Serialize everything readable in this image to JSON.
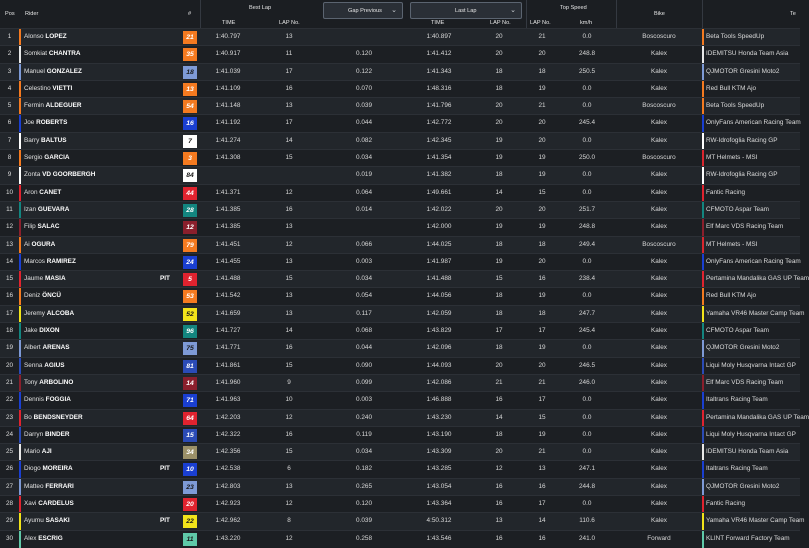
{
  "header": {
    "pos": "Pos",
    "rider": "Rider",
    "num": "#",
    "best_lap": "Best Lap",
    "best_time": "TIME",
    "best_lap_no": "LAP No.",
    "gap_dropdown": "Gap Previous",
    "last_lap_dropdown": "Last Lap",
    "last_time": "TIME",
    "last_lap_no": "LAP No.",
    "top_speed": "Top Speed",
    "top_speed_lap": "LAP No.",
    "top_speed_unit": "km/h",
    "bike": "Bike",
    "team": "Te"
  },
  "icons": {
    "dropdown_chevron": "chevron-down-icon"
  },
  "rows": [
    {
      "pos": "1",
      "first": "Alonso",
      "last": "LOPEZ",
      "pit": "",
      "num": "21",
      "numBg": "#f47a20",
      "numFg": "#ffffff",
      "bar": "#f47a20",
      "best": "1:40.797",
      "bestLap": "13",
      "gap": "",
      "last_time": "1:40.897",
      "last_lap": "20",
      "ts_lap": "21",
      "ts": "0.0",
      "bike": "Boscoscuro",
      "team": "Beta Tools SpeedUp",
      "teamColor": "#f47a20"
    },
    {
      "pos": "2",
      "first": "Somkiat",
      "last": "CHANTRA",
      "pit": "",
      "num": "35",
      "numBg": "#f47a20",
      "numFg": "#ffffff",
      "bar": "#e8e8e8",
      "best": "1:40.917",
      "bestLap": "11",
      "gap": "0.120",
      "last_time": "1:41.412",
      "last_lap": "20",
      "ts_lap": "20",
      "ts": "248.8",
      "bike": "Kalex",
      "team": "IDEMITSU Honda Team Asia",
      "teamColor": "#e8e8e8"
    },
    {
      "pos": "3",
      "first": "Manuel",
      "last": "GONZALEZ",
      "pit": "",
      "num": "18",
      "numBg": "#7e9ad6",
      "numFg": "#1a1a1a",
      "bar": "#7e9ad6",
      "best": "1:41.039",
      "bestLap": "17",
      "gap": "0.122",
      "last_time": "1:41.343",
      "last_lap": "18",
      "ts_lap": "18",
      "ts": "250.5",
      "bike": "Kalex",
      "team": "QJMOTOR Gresini Moto2",
      "teamColor": "#7e9ad6"
    },
    {
      "pos": "4",
      "first": "Celestino",
      "last": "VIETTI",
      "pit": "",
      "num": "13",
      "numBg": "#f47a20",
      "numFg": "#ffffff",
      "bar": "#f47a20",
      "best": "1:41.109",
      "bestLap": "16",
      "gap": "0.070",
      "last_time": "1:48.316",
      "last_lap": "18",
      "ts_lap": "19",
      "ts": "0.0",
      "bike": "Kalex",
      "team": "Red Bull KTM Ajo",
      "teamColor": "#f47a20"
    },
    {
      "pos": "5",
      "first": "Fermin",
      "last": "ALDEGUER",
      "pit": "",
      "num": "54",
      "numBg": "#f47a20",
      "numFg": "#ffffff",
      "bar": "#f47a20",
      "best": "1:41.148",
      "bestLap": "13",
      "gap": "0.039",
      "last_time": "1:41.796",
      "last_lap": "20",
      "ts_lap": "21",
      "ts": "0.0",
      "bike": "Boscoscuro",
      "team": "Beta Tools SpeedUp",
      "teamColor": "#f47a20"
    },
    {
      "pos": "6",
      "first": "Joe",
      "last": "ROBERTS",
      "pit": "",
      "num": "16",
      "numBg": "#1a3fd1",
      "numFg": "#ffffff",
      "bar": "#1a3fd1",
      "best": "1:41.192",
      "bestLap": "17",
      "gap": "0.044",
      "last_time": "1:42.772",
      "last_lap": "20",
      "ts_lap": "20",
      "ts": "245.4",
      "bike": "Kalex",
      "team": "OnlyFans American Racing Team",
      "teamColor": "#1a3fd1"
    },
    {
      "pos": "7",
      "first": "Barry",
      "last": "BALTUS",
      "pit": "",
      "num": "7",
      "numBg": "#ffffff",
      "numFg": "#1a1a1a",
      "bar": "#ffffff",
      "best": "1:41.274",
      "bestLap": "14",
      "gap": "0.082",
      "last_time": "1:42.345",
      "last_lap": "19",
      "ts_lap": "20",
      "ts": "0.0",
      "bike": "Kalex",
      "team": "RW-Idrofoglia Racing GP",
      "teamColor": "#ffffff"
    },
    {
      "pos": "8",
      "first": "Sergio",
      "last": "GARCIA",
      "pit": "",
      "num": "3",
      "numBg": "#f47a20",
      "numFg": "#ffffff",
      "bar": "#f47a20",
      "best": "1:41.308",
      "bestLap": "15",
      "gap": "0.034",
      "last_time": "1:41.354",
      "last_lap": "19",
      "ts_lap": "19",
      "ts": "250.0",
      "bike": "Boscoscuro",
      "team": "MT Helmets - MSI",
      "teamColor": "#d9262e"
    },
    {
      "pos": "9",
      "first": "Zonta",
      "last": "VD GOORBERGH",
      "pit": "",
      "num": "84",
      "numBg": "#ffffff",
      "numFg": "#1a1a1a",
      "bar": "#ffffff",
      "best": "",
      "bestLap": "",
      "gap": "0.019",
      "last_time": "1:41.382",
      "last_lap": "18",
      "ts_lap": "19",
      "ts": "0.0",
      "bike": "Kalex",
      "team": "RW-Idrofoglia Racing GP",
      "teamColor": "#ffffff"
    },
    {
      "pos": "10",
      "first": "Aron",
      "last": "CANET",
      "pit": "",
      "num": "44",
      "numBg": "#e0232f",
      "numFg": "#ffffff",
      "bar": "#e0232f",
      "best": "1:41.371",
      "bestLap": "12",
      "gap": "0.064",
      "last_time": "1:49.661",
      "last_lap": "14",
      "ts_lap": "15",
      "ts": "0.0",
      "bike": "Kalex",
      "team": "Fantic Racing",
      "teamColor": "#e0232f"
    },
    {
      "pos": "11",
      "first": "Izan",
      "last": "GUEVARA",
      "pit": "",
      "num": "28",
      "numBg": "#13857f",
      "numFg": "#ffffff",
      "bar": "#13857f",
      "best": "1:41.385",
      "bestLap": "16",
      "gap": "0.014",
      "last_time": "1:42.022",
      "last_lap": "20",
      "ts_lap": "20",
      "ts": "251.7",
      "bike": "Kalex",
      "team": "CFMOTO Aspar Team",
      "teamColor": "#13857f"
    },
    {
      "pos": "12",
      "first": "Filip",
      "last": "SALAC",
      "pit": "",
      "num": "12",
      "numBg": "#8a1f2c",
      "numFg": "#ffffff",
      "bar": "#8a1f2c",
      "best": "1:41.385",
      "bestLap": "13",
      "gap": "",
      "last_time": "1:42.000",
      "last_lap": "19",
      "ts_lap": "19",
      "ts": "248.8",
      "bike": "Kalex",
      "team": "Elf Marc VDS Racing Team",
      "teamColor": "#8a1f2c"
    },
    {
      "pos": "13",
      "first": "Ai",
      "last": "OGURA",
      "pit": "",
      "num": "79",
      "numBg": "#f47a20",
      "numFg": "#ffffff",
      "bar": "#f47a20",
      "best": "1:41.451",
      "bestLap": "12",
      "gap": "0.066",
      "last_time": "1:44.025",
      "last_lap": "18",
      "ts_lap": "18",
      "ts": "249.4",
      "bike": "Boscoscuro",
      "team": "MT Helmets - MSI",
      "teamColor": "#d9262e"
    },
    {
      "pos": "14",
      "first": "Marcos",
      "last": "RAMIREZ",
      "pit": "",
      "num": "24",
      "numBg": "#1a3fd1",
      "numFg": "#ffffff",
      "bar": "#1a3fd1",
      "best": "1:41.455",
      "bestLap": "13",
      "gap": "0.003",
      "last_time": "1:41.987",
      "last_lap": "19",
      "ts_lap": "20",
      "ts": "0.0",
      "bike": "Kalex",
      "team": "OnlyFans American Racing Team",
      "teamColor": "#1a3fd1"
    },
    {
      "pos": "15",
      "first": "Jaume",
      "last": "MASIA",
      "pit": "PIT",
      "num": "5",
      "numBg": "#e0232f",
      "numFg": "#ffffff",
      "bar": "#e0232f",
      "best": "1:41.488",
      "bestLap": "15",
      "gap": "0.034",
      "last_time": "1:41.488",
      "last_lap": "15",
      "ts_lap": "16",
      "ts": "238.4",
      "bike": "Kalex",
      "team": "Pertamina Mandalika GAS UP Team",
      "teamColor": "#e0232f"
    },
    {
      "pos": "16",
      "first": "Deniz",
      "last": "ÖNCÜ",
      "pit": "",
      "num": "53",
      "numBg": "#f47a20",
      "numFg": "#ffffff",
      "bar": "#f47a20",
      "best": "1:41.542",
      "bestLap": "13",
      "gap": "0.054",
      "last_time": "1:44.056",
      "last_lap": "18",
      "ts_lap": "19",
      "ts": "0.0",
      "bike": "Kalex",
      "team": "Red Bull KTM Ajo",
      "teamColor": "#f47a20"
    },
    {
      "pos": "17",
      "first": "Jeremy",
      "last": "ALCOBA",
      "pit": "",
      "num": "52",
      "numBg": "#f2e31a",
      "numFg": "#1a1a1a",
      "bar": "#f2e31a",
      "best": "1:41.659",
      "bestLap": "13",
      "gap": "0.117",
      "last_time": "1:42.059",
      "last_lap": "18",
      "ts_lap": "18",
      "ts": "247.7",
      "bike": "Kalex",
      "team": "Yamaha VR46 Master Camp Team",
      "teamColor": "#f2e31a"
    },
    {
      "pos": "18",
      "first": "Jake",
      "last": "DIXON",
      "pit": "",
      "num": "96",
      "numBg": "#13857f",
      "numFg": "#ffffff",
      "bar": "#13857f",
      "best": "1:41.727",
      "bestLap": "14",
      "gap": "0.068",
      "last_time": "1:43.829",
      "last_lap": "17",
      "ts_lap": "17",
      "ts": "245.4",
      "bike": "Kalex",
      "team": "CFMOTO Aspar Team",
      "teamColor": "#13857f"
    },
    {
      "pos": "19",
      "first": "Albert",
      "last": "ARENAS",
      "pit": "",
      "num": "75",
      "numBg": "#7e9ad6",
      "numFg": "#1a1a1a",
      "bar": "#7e9ad6",
      "best": "1:41.771",
      "bestLap": "16",
      "gap": "0.044",
      "last_time": "1:42.096",
      "last_lap": "18",
      "ts_lap": "19",
      "ts": "0.0",
      "bike": "Kalex",
      "team": "QJMOTOR Gresini Moto2",
      "teamColor": "#7e9ad6"
    },
    {
      "pos": "20",
      "first": "Senna",
      "last": "AGIUS",
      "pit": "",
      "num": "81",
      "numBg": "#2b4bb6",
      "numFg": "#ffffff",
      "bar": "#2b4bb6",
      "best": "1:41.861",
      "bestLap": "15",
      "gap": "0.090",
      "last_time": "1:44.093",
      "last_lap": "20",
      "ts_lap": "20",
      "ts": "246.5",
      "bike": "Kalex",
      "team": "Liqui Moly Husqvarna Intact GP",
      "teamColor": "#2b4bb6"
    },
    {
      "pos": "21",
      "first": "Tony",
      "last": "ARBOLINO",
      "pit": "",
      "num": "14",
      "numBg": "#8a1f2c",
      "numFg": "#ffffff",
      "bar": "#8a1f2c",
      "best": "1:41.960",
      "bestLap": "9",
      "gap": "0.099",
      "last_time": "1:42.086",
      "last_lap": "21",
      "ts_lap": "21",
      "ts": "246.0",
      "bike": "Kalex",
      "team": "Elf Marc VDS Racing Team",
      "teamColor": "#8a1f2c"
    },
    {
      "pos": "22",
      "first": "Dennis",
      "last": "FOGGIA",
      "pit": "",
      "num": "71",
      "numBg": "#1a3fd1",
      "numFg": "#ffffff",
      "bar": "#1a3fd1",
      "best": "1:41.963",
      "bestLap": "10",
      "gap": "0.003",
      "last_time": "1:46.888",
      "last_lap": "16",
      "ts_lap": "17",
      "ts": "0.0",
      "bike": "Kalex",
      "team": "Italtrans Racing Team",
      "teamColor": "#1a3fd1"
    },
    {
      "pos": "23",
      "first": "Bo",
      "last": "BENDSNEYDER",
      "pit": "",
      "num": "64",
      "numBg": "#e0232f",
      "numFg": "#ffffff",
      "bar": "#e0232f",
      "best": "1:42.203",
      "bestLap": "12",
      "gap": "0.240",
      "last_time": "1:43.230",
      "last_lap": "14",
      "ts_lap": "15",
      "ts": "0.0",
      "bike": "Kalex",
      "team": "Pertamina Mandalika GAS UP Team",
      "teamColor": "#e0232f"
    },
    {
      "pos": "24",
      "first": "Darryn",
      "last": "BINDER",
      "pit": "",
      "num": "15",
      "numBg": "#2b4bb6",
      "numFg": "#ffffff",
      "bar": "#2b4bb6",
      "best": "1:42.322",
      "bestLap": "16",
      "gap": "0.119",
      "last_time": "1:43.190",
      "last_lap": "18",
      "ts_lap": "19",
      "ts": "0.0",
      "bike": "Kalex",
      "team": "Liqui Moly Husqvarna Intact GP",
      "teamColor": "#2b4bb6"
    },
    {
      "pos": "25",
      "first": "Mario",
      "last": "AJI",
      "pit": "",
      "num": "34",
      "numBg": "#9b9068",
      "numFg": "#ffffff",
      "bar": "#e8e8e8",
      "best": "1:42.356",
      "bestLap": "15",
      "gap": "0.034",
      "last_time": "1:43.309",
      "last_lap": "20",
      "ts_lap": "21",
      "ts": "0.0",
      "bike": "Kalex",
      "team": "IDEMITSU Honda Team Asia",
      "teamColor": "#e8e8e8"
    },
    {
      "pos": "26",
      "first": "Diogo",
      "last": "MOREIRA",
      "pit": "PIT",
      "num": "10",
      "numBg": "#1a3fd1",
      "numFg": "#ffffff",
      "bar": "#1a3fd1",
      "best": "1:42.538",
      "bestLap": "6",
      "gap": "0.182",
      "last_time": "1:43.285",
      "last_lap": "12",
      "ts_lap": "13",
      "ts": "247.1",
      "bike": "Kalex",
      "team": "Italtrans Racing Team",
      "teamColor": "#1a3fd1"
    },
    {
      "pos": "27",
      "first": "Matteo",
      "last": "FERRARI",
      "pit": "",
      "num": "23",
      "numBg": "#7e9ad6",
      "numFg": "#1a1a1a",
      "bar": "#7e9ad6",
      "best": "1:42.803",
      "bestLap": "13",
      "gap": "0.265",
      "last_time": "1:43.054",
      "last_lap": "16",
      "ts_lap": "16",
      "ts": "244.8",
      "bike": "Kalex",
      "team": "QJMOTOR Gresini Moto2",
      "teamColor": "#7e9ad6"
    },
    {
      "pos": "28",
      "first": "Xavi",
      "last": "CARDELUS",
      "pit": "",
      "num": "20",
      "numBg": "#e0232f",
      "numFg": "#ffffff",
      "bar": "#e0232f",
      "best": "1:42.923",
      "bestLap": "12",
      "gap": "0.120",
      "last_time": "1:43.364",
      "last_lap": "16",
      "ts_lap": "17",
      "ts": "0.0",
      "bike": "Kalex",
      "team": "Fantic Racing",
      "teamColor": "#e0232f"
    },
    {
      "pos": "29",
      "first": "Ayumu",
      "last": "SASAKI",
      "pit": "PIT",
      "num": "22",
      "numBg": "#f2e31a",
      "numFg": "#1a1a1a",
      "bar": "#f2e31a",
      "best": "1:42.962",
      "bestLap": "8",
      "gap": "0.039",
      "last_time": "4:50.312",
      "last_lap": "13",
      "ts_lap": "14",
      "ts": "110.6",
      "bike": "Kalex",
      "team": "Yamaha VR46 Master Camp Team",
      "teamColor": "#f2e31a"
    },
    {
      "pos": "30",
      "first": "Alex",
      "last": "ESCRIG",
      "pit": "",
      "num": "11",
      "numBg": "#5fc9a8",
      "numFg": "#1a1a1a",
      "bar": "#5fc9a8",
      "best": "1:43.220",
      "bestLap": "12",
      "gap": "0.258",
      "last_time": "1:43.546",
      "last_lap": "16",
      "ts_lap": "16",
      "ts": "241.0",
      "bike": "Forward",
      "team": "KLINT Forward Factory Team",
      "teamColor": "#5fc9a8"
    }
  ]
}
